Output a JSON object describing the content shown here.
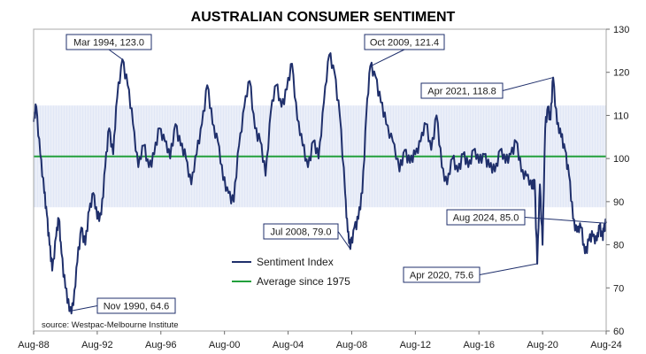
{
  "chart_data": {
    "type": "line",
    "title": "AUSTRALIAN CONSUMER SENTIMENT",
    "source": "source: Westpac-Melbourne Institute",
    "x_ticks": [
      "Aug-88",
      "Aug-92",
      "Aug-96",
      "Aug-00",
      "Aug-04",
      "Aug-08",
      "Aug-12",
      "Aug-16",
      "Aug-20",
      "Aug-24"
    ],
    "y_ticks": [
      60,
      70,
      80,
      90,
      100,
      110,
      120,
      130
    ],
    "ylim": [
      60,
      130
    ],
    "xlim": [
      "1988-08",
      "2024-08"
    ],
    "band_range": [
      88.7,
      112.3
    ],
    "legend": {
      "position": "center-left",
      "items": [
        "Sentiment Index",
        "Average since 1975"
      ]
    },
    "colors": {
      "series": "#1f2f6b",
      "average": "#22a03c",
      "band": "#c9d4ef"
    },
    "series": [
      {
        "name": "Sentiment Index",
        "points": [
          [
            "1988-08",
            108.5
          ],
          [
            "1988-10",
            112
          ],
          [
            "1989-01",
            101
          ],
          [
            "1989-04",
            92
          ],
          [
            "1989-06",
            87
          ],
          [
            "1989-08",
            80
          ],
          [
            "1989-10",
            74
          ],
          [
            "1990-01",
            82
          ],
          [
            "1990-03",
            86
          ],
          [
            "1990-05",
            78
          ],
          [
            "1990-08",
            70
          ],
          [
            "1990-11",
            64.6
          ],
          [
            "1991-02",
            66
          ],
          [
            "1991-05",
            76
          ],
          [
            "1991-08",
            84
          ],
          [
            "1991-11",
            80
          ],
          [
            "1992-02",
            88
          ],
          [
            "1992-05",
            92
          ],
          [
            "1992-08",
            86
          ],
          [
            "1992-11",
            87
          ],
          [
            "1993-02",
            98
          ],
          [
            "1993-05",
            107
          ],
          [
            "1993-08",
            101
          ],
          [
            "1993-11",
            114
          ],
          [
            "1994-03",
            123
          ],
          [
            "1994-07",
            117
          ],
          [
            "1994-11",
            108
          ],
          [
            "1995-03",
            98
          ],
          [
            "1995-07",
            103
          ],
          [
            "1995-11",
            98
          ],
          [
            "1996-03",
            101
          ],
          [
            "1996-07",
            107
          ],
          [
            "1996-11",
            104
          ],
          [
            "1997-03",
            100
          ],
          [
            "1997-07",
            108
          ],
          [
            "1997-11",
            103
          ],
          [
            "1998-03",
            100
          ],
          [
            "1998-07",
            94
          ],
          [
            "1998-11",
            101
          ],
          [
            "1999-03",
            108
          ],
          [
            "1999-07",
            117
          ],
          [
            "1999-11",
            108
          ],
          [
            "2000-03",
            104
          ],
          [
            "2000-07",
            95
          ],
          [
            "2000-11",
            92
          ],
          [
            "2001-03",
            90
          ],
          [
            "2001-07",
            103
          ],
          [
            "2001-11",
            112
          ],
          [
            "2002-03",
            118
          ],
          [
            "2002-07",
            107
          ],
          [
            "2002-11",
            104
          ],
          [
            "2003-03",
            96
          ],
          [
            "2003-07",
            111
          ],
          [
            "2003-11",
            117
          ],
          [
            "2004-03",
            112
          ],
          [
            "2004-07",
            116
          ],
          [
            "2004-11",
            122
          ],
          [
            "2005-03",
            109
          ],
          [
            "2005-07",
            103
          ],
          [
            "2005-11",
            98
          ],
          [
            "2006-03",
            104
          ],
          [
            "2006-07",
            100
          ],
          [
            "2006-11",
            113
          ],
          [
            "2007-03",
            124
          ],
          [
            "2007-07",
            120
          ],
          [
            "2007-11",
            110
          ],
          [
            "2008-03",
            92
          ],
          [
            "2008-05",
            83
          ],
          [
            "2008-07",
            79
          ],
          [
            "2008-10",
            84
          ],
          [
            "2009-01",
            86
          ],
          [
            "2009-04",
            92
          ],
          [
            "2009-07",
            110
          ],
          [
            "2009-10",
            121.4
          ],
          [
            "2010-02",
            119
          ],
          [
            "2010-06",
            113
          ],
          [
            "2010-10",
            108
          ],
          [
            "2011-03",
            104
          ],
          [
            "2011-08",
            97
          ],
          [
            "2011-12",
            102
          ],
          [
            "2012-04",
            99
          ],
          [
            "2012-08",
            101
          ],
          [
            "2012-12",
            104
          ],
          [
            "2013-04",
            108
          ],
          [
            "2013-08",
            102
          ],
          [
            "2013-12",
            110
          ],
          [
            "2014-04",
            98
          ],
          [
            "2014-08",
            94
          ],
          [
            "2014-12",
            100
          ],
          [
            "2015-04",
            97
          ],
          [
            "2015-08",
            101
          ],
          [
            "2015-12",
            98
          ],
          [
            "2016-04",
            102
          ],
          [
            "2016-08",
            99
          ],
          [
            "2016-12",
            101
          ],
          [
            "2017-04",
            98
          ],
          [
            "2017-08",
            97
          ],
          [
            "2017-12",
            102
          ],
          [
            "2018-04",
            99
          ],
          [
            "2018-08",
            101
          ],
          [
            "2018-12",
            104
          ],
          [
            "2019-04",
            97
          ],
          [
            "2019-08",
            96
          ],
          [
            "2019-12",
            93
          ],
          [
            "2020-02",
            95
          ],
          [
            "2020-04",
            75.6
          ],
          [
            "2020-06",
            94
          ],
          [
            "2020-08",
            80
          ],
          [
            "2020-10",
            107
          ],
          [
            "2020-12",
            112
          ],
          [
            "2021-02",
            109
          ],
          [
            "2021-04",
            118.8
          ],
          [
            "2021-07",
            108
          ],
          [
            "2021-10",
            105
          ],
          [
            "2022-01",
            102
          ],
          [
            "2022-04",
            96
          ],
          [
            "2022-07",
            86
          ],
          [
            "2022-10",
            83
          ],
          [
            "2023-01",
            84
          ],
          [
            "2023-04",
            78
          ],
          [
            "2023-07",
            81
          ],
          [
            "2023-10",
            82
          ],
          [
            "2024-01",
            81
          ],
          [
            "2024-03",
            84
          ],
          [
            "2024-05",
            82
          ],
          [
            "2024-06",
            83
          ],
          [
            "2024-08",
            85.0
          ]
        ]
      },
      {
        "name": "Average since 1975",
        "points": [
          [
            "1988-08",
            100.5
          ],
          [
            "2024-08",
            100.5
          ]
        ]
      }
    ],
    "annotations": [
      {
        "id": "mar1994",
        "label": "Mar 1994, 123.0",
        "x": "1994-03",
        "y": 123.0
      },
      {
        "id": "oct2009",
        "label": "Oct 2009, 121.4",
        "x": "2009-10",
        "y": 121.4
      },
      {
        "id": "apr2021",
        "label": "Apr 2021, 118.8",
        "x": "2021-04",
        "y": 118.8
      },
      {
        "id": "aug2024",
        "label": "Aug 2024, 85.0",
        "x": "2024-08",
        "y": 85.0
      },
      {
        "id": "jul2008",
        "label": "Jul 2008, 79.0",
        "x": "2008-07",
        "y": 79.0
      },
      {
        "id": "apr2020",
        "label": "Apr 2020, 75.6",
        "x": "2020-04",
        "y": 75.6
      },
      {
        "id": "nov1990",
        "label": "Nov 1990, 64.6",
        "x": "1990-11",
        "y": 64.6
      }
    ]
  }
}
